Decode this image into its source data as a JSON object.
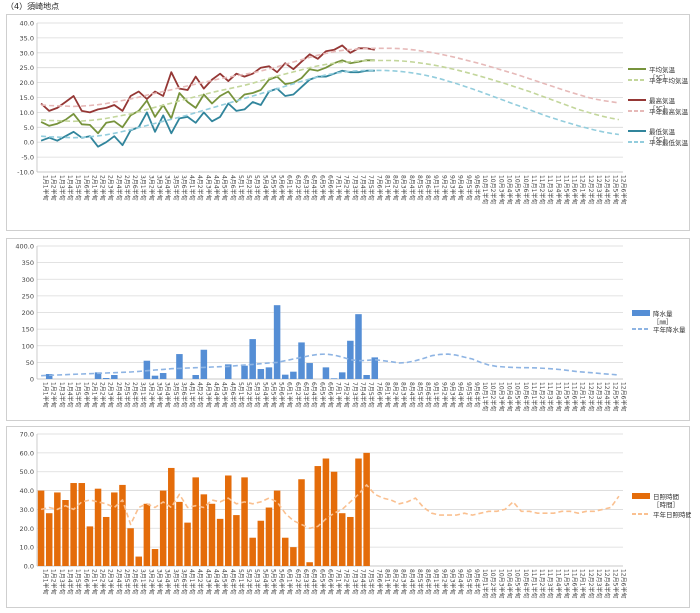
{
  "page": {
    "title": "（4）須崎地点"
  },
  "x_labels": [
    "1月1半旬",
    "1月2半旬",
    "1月3半旬",
    "1月4半旬",
    "1月5半旬",
    "1月6半旬",
    "2月1半旬",
    "2月2半旬",
    "2月3半旬",
    "2月4半旬",
    "2月5半旬",
    "2月6半旬",
    "3月1半旬",
    "3月2半旬",
    "3月3半旬",
    "3月4半旬",
    "3月5半旬",
    "3月6半旬",
    "4月1半旬",
    "4月2半旬",
    "4月3半旬",
    "4月4半旬",
    "4月5半旬",
    "4月6半旬",
    "5月1半旬",
    "5月2半旬",
    "5月3半旬",
    "5月4半旬",
    "5月5半旬",
    "5月6半旬",
    "6月1半旬",
    "6月2半旬",
    "6月3半旬",
    "6月4半旬",
    "6月5半旬",
    "6月6半旬",
    "7月1半旬",
    "7月2半旬",
    "7月3半旬",
    "7月4半旬",
    "7月5半旬",
    "7月6半旬",
    "8月1半旬",
    "8月2半旬",
    "8月3半旬",
    "8月4半旬",
    "8月5半旬",
    "8月6半旬",
    "9月1半旬",
    "9月2半旬",
    "9月3半旬",
    "9月4半旬",
    "9月5半旬",
    "9月6半旬",
    "10月1半旬",
    "10月2半旬",
    "10月3半旬",
    "10月4半旬",
    "10月5半旬",
    "10月6半旬",
    "11月1半旬",
    "11月2半旬",
    "11月3半旬",
    "11月4半旬",
    "11月5半旬",
    "11月6半旬",
    "12月1半旬",
    "12月2半旬",
    "12月3半旬",
    "12月4半旬",
    "12月5半旬",
    "12月6半旬"
  ],
  "chart_data": [
    {
      "type": "line",
      "id": "temperature",
      "ylim": [
        -10,
        40
      ],
      "yticks": [
        "-10.0",
        "-5.0",
        "0.0",
        "5.0",
        "10.0",
        "15.0",
        "20.0",
        "25.0",
        "30.0",
        "35.0",
        "40.0"
      ],
      "yvalues": [
        -10,
        -5,
        0,
        5,
        10,
        15,
        20,
        25,
        30,
        35,
        40
      ],
      "grid": true,
      "legend_position": "right",
      "series": [
        {
          "name": "平均気温",
          "unit": "［℃］",
          "style": "solid",
          "color": "#77933c",
          "values": [
            6.8,
            5.5,
            6.2,
            7.5,
            9.5,
            6.0,
            5.8,
            3.0,
            6.5,
            7.0,
            5.0,
            9.0,
            10.5,
            14.0,
            8.5,
            12.5,
            8.0,
            16.5,
            13.5,
            11.5,
            16.0,
            13.0,
            15.5,
            17.0,
            13.5,
            16.0,
            16.5,
            17.5,
            21.0,
            22.0,
            19.5,
            20.0,
            21.5,
            24.5,
            24.0,
            25.0,
            26.5,
            27.5,
            26.5,
            27.0,
            27.5,
            27.5
          ]
        },
        {
          "name": "平年平均気温",
          "style": "dashed",
          "color": "#c3d69b",
          "values": [
            7.5,
            7.3,
            7.2,
            7.1,
            7.0,
            7.1,
            7.3,
            7.6,
            8.0,
            8.5,
            9.0,
            9.5,
            10.2,
            11.0,
            11.7,
            12.4,
            13.1,
            13.9,
            14.6,
            15.3,
            16.0,
            16.7,
            17.3,
            17.9,
            18.5,
            19.1,
            19.8,
            20.6,
            21.4,
            22.2,
            22.9,
            23.6,
            24.3,
            25.0,
            25.6,
            26.1,
            26.5,
            26.8,
            27.0,
            27.2,
            27.3,
            27.4,
            27.4,
            27.4,
            27.3,
            27.1,
            26.8,
            26.4,
            26.0,
            25.5,
            24.9,
            24.3,
            23.6,
            22.9,
            22.1,
            21.3,
            20.5,
            19.7,
            18.8,
            17.9,
            17.0,
            16.0,
            15.0,
            14.0,
            13.0,
            12.0,
            11.0,
            10.2,
            9.4,
            8.7,
            8.1,
            7.6
          ]
        },
        {
          "name": "最高気温",
          "unit": "［℃］",
          "style": "solid",
          "color": "#953735",
          "values": [
            13.0,
            10.5,
            11.5,
            13.5,
            15.5,
            10.5,
            10.0,
            11.0,
            11.5,
            12.5,
            10.5,
            15.5,
            17.0,
            14.5,
            17.0,
            15.5,
            23.5,
            18.0,
            17.5,
            22.0,
            18.0,
            21.0,
            23.0,
            20.5,
            23.0,
            22.0,
            23.0,
            25.0,
            25.5,
            23.5,
            26.5,
            24.5,
            27.0,
            29.5,
            28.0,
            30.5,
            31.0,
            32.5,
            30.0,
            31.5,
            31.5,
            31.0
          ]
        },
        {
          "name": "平年最高気温",
          "style": "dashed",
          "color": "#e6b9b8",
          "values": [
            12.5,
            12.3,
            12.2,
            12.1,
            12.0,
            12.1,
            12.3,
            12.6,
            13.0,
            13.5,
            14.0,
            14.5,
            15.1,
            15.8,
            16.4,
            17.0,
            17.6,
            18.3,
            18.9,
            19.5,
            20.1,
            20.7,
            21.3,
            21.8,
            22.3,
            22.8,
            23.3,
            23.9,
            24.6,
            25.3,
            26.1,
            26.9,
            27.7,
            28.5,
            29.2,
            29.8,
            30.4,
            30.8,
            31.1,
            31.3,
            31.4,
            31.5,
            31.5,
            31.5,
            31.4,
            31.2,
            30.9,
            30.5,
            30.1,
            29.6,
            29.0,
            28.4,
            27.7,
            27.0,
            26.3,
            25.5,
            24.7,
            23.9,
            23.1,
            22.2,
            21.3,
            20.4,
            19.5,
            18.6,
            17.7,
            16.8,
            16.0,
            15.2,
            14.5,
            14.0,
            13.6,
            13.2
          ]
        },
        {
          "name": "最低気温",
          "unit": "［℃］",
          "style": "solid",
          "color": "#31859c",
          "values": [
            0.5,
            1.5,
            0.5,
            2.0,
            3.5,
            1.5,
            2.0,
            -1.5,
            0.0,
            2.0,
            -1.0,
            4.0,
            5.0,
            10.0,
            3.5,
            9.0,
            3.0,
            8.0,
            8.5,
            6.5,
            10.0,
            7.0,
            8.5,
            13.0,
            10.5,
            11.0,
            13.5,
            12.5,
            17.0,
            18.0,
            15.5,
            16.0,
            18.5,
            21.0,
            22.0,
            22.0,
            23.0,
            24.0,
            23.5,
            23.5,
            24.0,
            24.0
          ]
        },
        {
          "name": "平年最低気温",
          "style": "dashed",
          "color": "#93cddd",
          "values": [
            2.0,
            1.8,
            1.7,
            1.6,
            1.5,
            1.6,
            1.8,
            2.1,
            2.5,
            3.0,
            3.6,
            4.2,
            4.9,
            5.6,
            6.3,
            7.0,
            7.7,
            8.4,
            9.1,
            9.9,
            10.7,
            11.5,
            12.3,
            13.1,
            13.9,
            14.7,
            15.5,
            16.3,
            17.1,
            17.9,
            18.8,
            19.6,
            20.4,
            21.2,
            21.9,
            22.6,
            23.1,
            23.5,
            23.8,
            24.0,
            24.1,
            24.1,
            24.1,
            24.0,
            23.8,
            23.5,
            23.1,
            22.6,
            22.0,
            21.3,
            20.5,
            19.7,
            18.8,
            17.9,
            16.9,
            15.9,
            14.9,
            13.9,
            12.9,
            11.9,
            10.9,
            9.9,
            8.9,
            8.0,
            7.1,
            6.3,
            5.5,
            4.8,
            4.1,
            3.5,
            3.0,
            2.6
          ]
        }
      ]
    },
    {
      "type": "bar",
      "id": "precipitation",
      "ylim": [
        0,
        400
      ],
      "yticks": [
        "0",
        "50",
        "100",
        "150",
        "200",
        "250",
        "300",
        "350",
        "400.0"
      ],
      "yvalues": [
        0,
        50,
        100,
        150,
        200,
        250,
        300,
        350,
        400
      ],
      "grid": true,
      "legend_position": "right",
      "series": [
        {
          "name": "降水量",
          "unit": "［㎜］",
          "kind": "bar",
          "color": "#558ed5",
          "values": [
            0,
            15,
            0,
            0,
            0,
            0,
            0,
            20,
            3,
            12,
            0,
            0,
            0,
            55,
            10,
            18,
            0,
            75,
            0,
            12,
            88,
            0,
            0,
            44,
            0,
            40,
            120,
            30,
            35,
            222,
            13,
            22,
            110,
            48,
            0,
            35,
            2,
            20,
            115,
            195,
            12,
            65
          ]
        },
        {
          "name": "平年降水量",
          "kind": "dashed-line",
          "color": "#8eb4e3",
          "values": [
            10,
            11,
            12,
            13,
            14,
            15,
            16,
            17,
            18,
            19,
            20,
            21,
            23,
            25,
            27,
            29,
            31,
            32,
            33,
            34,
            35,
            36,
            37,
            38,
            40,
            42,
            44,
            46,
            48,
            50,
            55,
            60,
            65,
            70,
            74,
            75,
            72,
            66,
            58,
            55,
            56,
            58,
            55,
            52,
            48,
            50,
            55,
            62,
            70,
            74,
            75,
            72,
            66,
            60,
            50,
            42,
            38,
            36,
            35,
            34,
            34,
            33,
            32,
            30,
            28,
            25,
            22,
            20,
            18,
            16,
            14,
            12
          ]
        }
      ]
    },
    {
      "type": "bar",
      "id": "sunshine",
      "ylim": [
        0,
        70
      ],
      "yticks": [
        "0.0",
        "10.0",
        "20.0",
        "30.0",
        "40.0",
        "50.0",
        "60.0",
        "70.0"
      ],
      "yvalues": [
        0,
        10,
        20,
        30,
        40,
        50,
        60,
        70
      ],
      "grid": true,
      "legend_position": "right",
      "series": [
        {
          "name": "日照時間",
          "unit": "［時間］",
          "kind": "bar",
          "color": "#e46c0a",
          "values": [
            40,
            28,
            39,
            35,
            44,
            44,
            21,
            41,
            26,
            39,
            43,
            20,
            5,
            33,
            9,
            40,
            52,
            34,
            23,
            47,
            38,
            33,
            25,
            48,
            27,
            47,
            15,
            24,
            31,
            40,
            15,
            10,
            46,
            2,
            53,
            57,
            50,
            28,
            26,
            57,
            60,
            0
          ]
        },
        {
          "name": "平年日照時間",
          "kind": "dashed-line",
          "color": "#fac090",
          "values": [
            30,
            31,
            30,
            32,
            30,
            34,
            35,
            34,
            33,
            31,
            35,
            22,
            31,
            33,
            31,
            34,
            31,
            38,
            31,
            32,
            31,
            35,
            34,
            36,
            33,
            34,
            33,
            34,
            36,
            34,
            28,
            24,
            22,
            20,
            21,
            25,
            28,
            30,
            34,
            38,
            43,
            38,
            36,
            35,
            33,
            34,
            36,
            31,
            28,
            27,
            27,
            27,
            28,
            27,
            28,
            29,
            29,
            30,
            34,
            29,
            29,
            28,
            28,
            28,
            29,
            29,
            28,
            29,
            29,
            30,
            31,
            37
          ]
        }
      ]
    }
  ]
}
